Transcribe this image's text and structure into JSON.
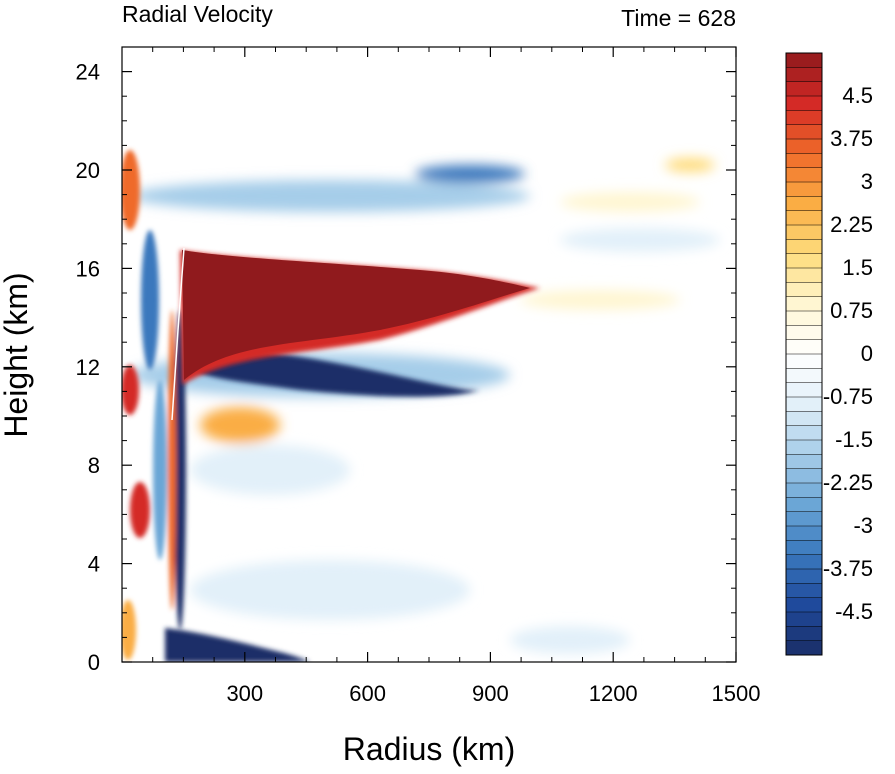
{
  "chart_data": {
    "type": "heatmap",
    "left_title": "Radial Velocity",
    "right_title": "Time = 628",
    "xlabel": "Radius (km)",
    "ylabel": "Height (km)",
    "xlim": [
      0,
      1500
    ],
    "ylim": [
      0,
      25
    ],
    "x_ticks": [
      300,
      600,
      900,
      1200,
      1500
    ],
    "y_ticks": [
      0,
      4,
      8,
      12,
      16,
      20,
      24
    ],
    "colorbar": {
      "min": -5.25,
      "max": 5.25,
      "step": 0.25,
      "labels": [
        "4.5",
        "3.75",
        "3",
        "2.25",
        "1.5",
        "0.75",
        "0",
        "-0.75",
        "-1.5",
        "-2.25",
        "-3",
        "-3.75",
        "-4.5"
      ],
      "colors": [
        "#1a2e68",
        "#1f4a9c",
        "#3a78bd",
        "#6ba6d6",
        "#a6cde9",
        "#e2f0f9",
        "#ffffff",
        "#fff6d2",
        "#fedc7c",
        "#faad44",
        "#ef6a2a",
        "#d42a26",
        "#901a1d"
      ]
    },
    "features": [
      {
        "description": "strong upper-level outflow jet",
        "r_km": [
          150,
          1000
        ],
        "z_km": [
          13,
          16.5
        ],
        "value": 5.25
      },
      {
        "description": "inflow layer below outflow",
        "r_km": [
          150,
          800
        ],
        "z_km": [
          11,
          12.5
        ],
        "value": -4.5
      },
      {
        "description": "boundary-layer inflow",
        "r_km": [
          100,
          400
        ],
        "z_km": [
          0,
          1
        ],
        "value": -5.0
      },
      {
        "description": "upper-level inflow band",
        "r_km": [
          400,
          1000
        ],
        "z_km": [
          19,
          21
        ],
        "value": -2.5
      },
      {
        "description": "weak outer outflow",
        "r_km": [
          1000,
          1450
        ],
        "z_km": [
          15,
          20.5
        ],
        "value": 1.0
      }
    ]
  }
}
